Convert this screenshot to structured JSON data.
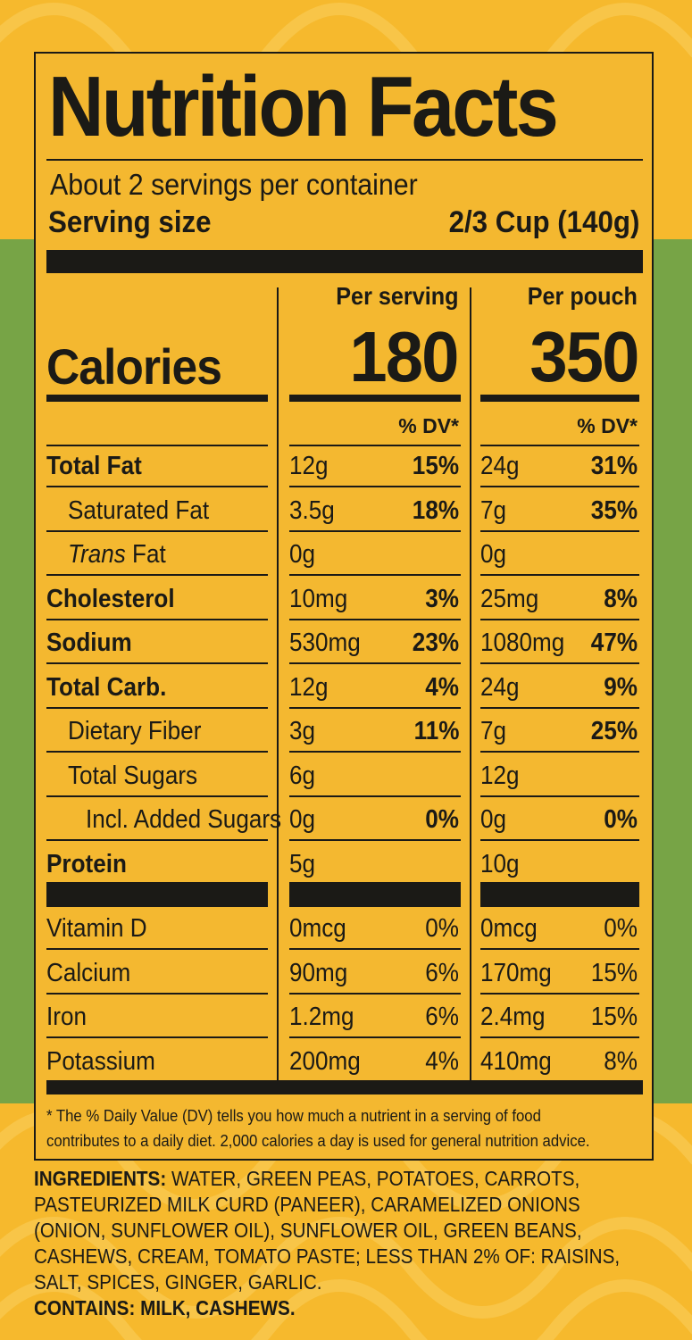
{
  "title": "Nutrition Facts",
  "servings_per_container": "About 2 servings per container",
  "serving_size": {
    "label": "Serving size",
    "value": "2/3 Cup (140g)"
  },
  "columns": [
    {
      "heading": "Per serving",
      "calories": "180",
      "dv_heading": "% DV*"
    },
    {
      "heading": "Per pouch",
      "calories": "350",
      "dv_heading": "% DV*"
    }
  ],
  "calories_label": "Calories",
  "nutrients": [
    {
      "label": "Total Fat",
      "bold": true,
      "indent": 0,
      "serving_amount": "12g",
      "serving_dv": "15%",
      "pouch_amount": "24g",
      "pouch_dv": "31%"
    },
    {
      "label": "Saturated Fat",
      "bold": false,
      "indent": 1,
      "serving_amount": "3.5g",
      "serving_dv": "18%",
      "pouch_amount": "7g",
      "pouch_dv": "35%"
    },
    {
      "label_italic": "Trans",
      "label": " Fat",
      "bold": false,
      "indent": 1,
      "serving_amount": "0g",
      "serving_dv": "",
      "pouch_amount": "0g",
      "pouch_dv": ""
    },
    {
      "label": "Cholesterol",
      "bold": true,
      "indent": 0,
      "serving_amount": "10mg",
      "serving_dv": "3%",
      "pouch_amount": "25mg",
      "pouch_dv": "8%"
    },
    {
      "label": "Sodium",
      "bold": true,
      "indent": 0,
      "serving_amount": "530mg",
      "serving_dv": "23%",
      "pouch_amount": "1080mg",
      "pouch_dv": "47%"
    },
    {
      "label": "Total Carb.",
      "bold": true,
      "indent": 0,
      "serving_amount": "12g",
      "serving_dv": "4%",
      "pouch_amount": "24g",
      "pouch_dv": "9%"
    },
    {
      "label": "Dietary Fiber",
      "bold": false,
      "indent": 1,
      "serving_amount": "3g",
      "serving_dv": "11%",
      "pouch_amount": "7g",
      "pouch_dv": "25%"
    },
    {
      "label": "Total Sugars",
      "bold": false,
      "indent": 1,
      "serving_amount": "6g",
      "serving_dv": "",
      "pouch_amount": "12g",
      "pouch_dv": ""
    },
    {
      "label": "Incl. Added Sugars",
      "bold": false,
      "indent": 2,
      "serving_amount": "0g",
      "serving_dv": "0%",
      "pouch_amount": "0g",
      "pouch_dv": "0%"
    },
    {
      "label": "Protein",
      "bold": true,
      "indent": 0,
      "serving_amount": "5g",
      "serving_dv": "",
      "pouch_amount": "10g",
      "pouch_dv": ""
    }
  ],
  "vitamins": [
    {
      "label": "Vitamin D",
      "serving_amount": "0mcg",
      "serving_dv": "0%",
      "pouch_amount": "0mcg",
      "pouch_dv": "0%"
    },
    {
      "label": "Calcium",
      "serving_amount": "90mg",
      "serving_dv": "6%",
      "pouch_amount": "170mg",
      "pouch_dv": "15%"
    },
    {
      "label": "Iron",
      "serving_amount": "1.2mg",
      "serving_dv": "6%",
      "pouch_amount": "2.4mg",
      "pouch_dv": "15%"
    },
    {
      "label": "Potassium",
      "serving_amount": "200mg",
      "serving_dv": "4%",
      "pouch_amount": "410mg",
      "pouch_dv": "8%"
    }
  ],
  "footnote": "* The % Daily Value (DV) tells you how much a nutrient in a serving of food contributes to a daily diet. 2,000 calories a day is used for general nutrition advice.",
  "ingredients": {
    "label": "INGREDIENTS:",
    "text": "WATER, GREEN PEAS, POTATOES, CARROTS, PASTEURIZED MILK CURD (PANEER), CARAMELIZED ONIONS (ONION, SUNFLOWER OIL), SUNFLOWER OIL, GREEN BEANS, CASHEWS, CREAM, TOMATO PASTE; LESS THAN 2% OF: RAISINS, SALT, SPICES, GINGER, GARLIC.",
    "contains": "CONTAINS: MILK, CASHEWS."
  },
  "colors": {
    "label_bg": "#f4b830",
    "outer_bg": "#f6b92d",
    "green_band": "#77a446",
    "ink": "#1b1a16"
  }
}
